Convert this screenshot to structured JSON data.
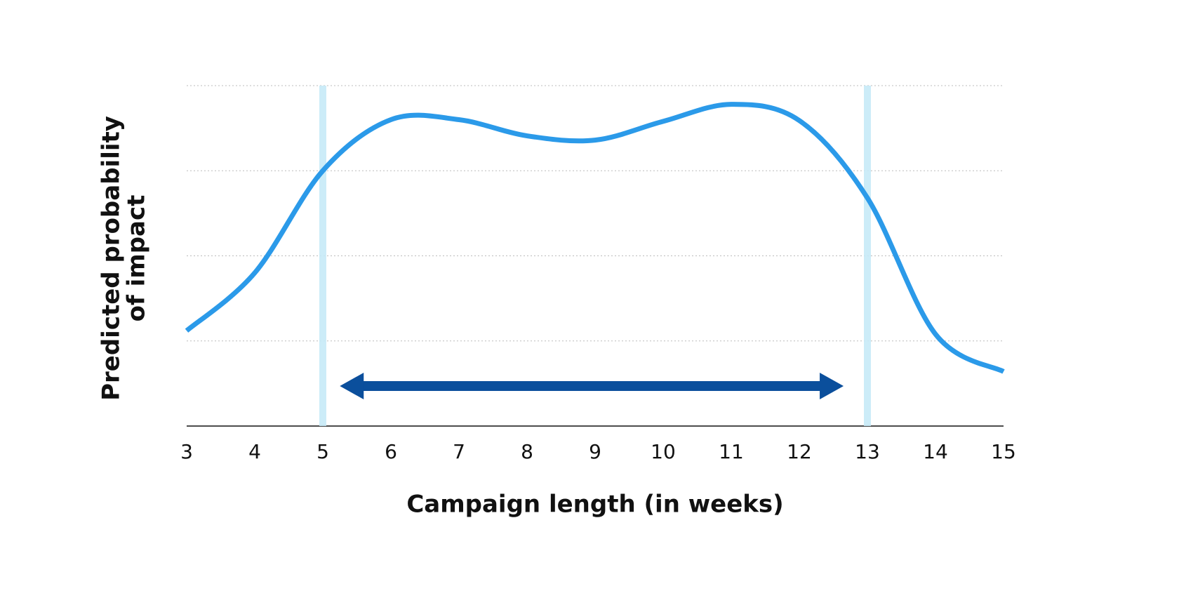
{
  "chart_data": {
    "type": "line",
    "xlabel": "Campaign length (in weeks)",
    "ylabel": [
      "Predicted probability",
      "of impact"
    ],
    "xlim": [
      3,
      15
    ],
    "xticks": [
      3,
      4,
      5,
      6,
      7,
      8,
      9,
      10,
      11,
      12,
      13,
      14,
      15
    ],
    "ylim": [
      0,
      4
    ],
    "yticks": [
      0,
      1,
      2,
      3,
      4
    ],
    "ytick_labels": false,
    "grid": true,
    "smooth": true,
    "series": [
      {
        "color": "#2b9ae9",
        "x": [
          3,
          4,
          5,
          6,
          7,
          8,
          9,
          10,
          11,
          12,
          13,
          14,
          15
        ],
        "values": [
          1.12,
          1.8,
          3.0,
          3.6,
          3.6,
          3.41,
          3.36,
          3.58,
          3.78,
          3.59,
          2.68,
          1.08,
          0.64
        ]
      }
    ],
    "highlight_x": [
      5,
      13
    ],
    "highlight_color": "#c6eaf7",
    "arrow": {
      "x": [
        5.25,
        12.65
      ],
      "y": 0.47,
      "color": "#0b4f9c"
    }
  }
}
